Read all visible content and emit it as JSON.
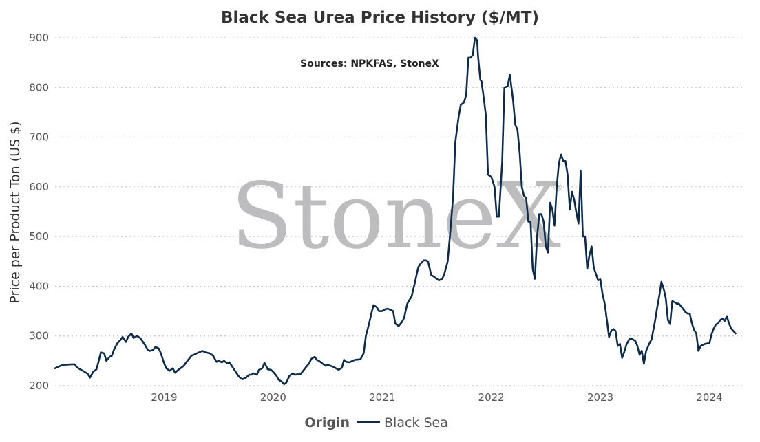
{
  "watermark": {
    "text": "StoneX",
    "mark": "®"
  },
  "legend": {
    "title": "Origin",
    "label": "Black Sea"
  },
  "chart_data": {
    "type": "line",
    "title": "Black Sea Urea Price History ($/MT)",
    "subtitle": "Sources: NPKFAS, StoneX",
    "xlabel": "",
    "ylabel": "Price per Product Ton (US $)",
    "ylim": [
      200,
      900
    ],
    "yticks": [
      200,
      300,
      400,
      500,
      600,
      700,
      800,
      900
    ],
    "xlim": [
      2018.0,
      2024.3
    ],
    "xticks": [
      {
        "value": 2019.0,
        "label": "2019"
      },
      {
        "value": 2020.0,
        "label": "2020"
      },
      {
        "value": 2021.0,
        "label": "2021"
      },
      {
        "value": 2022.0,
        "label": "2022"
      },
      {
        "value": 2023.0,
        "label": "2023"
      },
      {
        "value": 2024.0,
        "label": "2024"
      }
    ],
    "grid": true,
    "legend_position": "bottom",
    "series": [
      {
        "name": "Black Sea",
        "color": "#0d2c4b",
        "x": [
          2018.0,
          2018.05,
          2018.08,
          2018.1,
          2018.15,
          2018.18,
          2018.2,
          2018.23,
          2018.27,
          2018.3,
          2018.32,
          2018.35,
          2018.38,
          2018.4,
          2018.42,
          2018.45,
          2018.47,
          2018.5,
          2018.52,
          2018.54,
          2018.57,
          2018.6,
          2018.62,
          2018.65,
          2018.67,
          2018.7,
          2018.72,
          2018.75,
          2018.78,
          2018.8,
          2018.83,
          2018.85,
          2018.87,
          2018.9,
          2018.92,
          2018.95,
          2018.97,
          2019.0,
          2019.02,
          2019.05,
          2019.08,
          2019.1,
          2019.13,
          2019.15,
          2019.18,
          2019.2,
          2019.25,
          2019.3,
          2019.35,
          2019.38,
          2019.42,
          2019.45,
          2019.48,
          2019.5,
          2019.53,
          2019.55,
          2019.58,
          2019.6,
          2019.62,
          2019.65,
          2019.68,
          2019.7,
          2019.72,
          2019.75,
          2019.78,
          2019.8,
          2019.82,
          2019.85,
          2019.87,
          2019.9,
          2019.92,
          2019.95,
          2019.98,
          2020.0,
          2020.03,
          2020.05,
          2020.08,
          2020.1,
          2020.12,
          2020.15,
          2020.18,
          2020.2,
          2020.22,
          2020.25,
          2020.3,
          2020.33,
          2020.35,
          2020.38,
          2020.4,
          2020.42,
          2020.45,
          2020.48,
          2020.5,
          2020.55,
          2020.6,
          2020.63,
          2020.65,
          2020.67,
          2020.7,
          2020.75,
          2020.8,
          2020.83,
          2020.85,
          2020.88,
          2020.9,
          2020.92,
          2020.95,
          2020.97,
          2021.0,
          2021.03,
          2021.05,
          2021.08,
          2021.1,
          2021.12,
          2021.15,
          2021.18,
          2021.2,
          2021.23,
          2021.27,
          2021.3,
          2021.33,
          2021.35,
          2021.38,
          2021.4,
          2021.42,
          2021.45,
          2021.47,
          2021.5,
          2021.52,
          2021.55,
          2021.57,
          2021.6,
          2021.62,
          2021.65,
          2021.67,
          2021.7,
          2021.72,
          2021.75,
          2021.77,
          2021.79,
          2021.81,
          2021.83,
          2021.85,
          2021.87,
          2021.88,
          2021.9,
          2021.91,
          2021.93,
          2021.95,
          2021.97,
          2022.0,
          2022.03,
          2022.05,
          2022.07,
          2022.1,
          2022.12,
          2022.15,
          2022.17,
          2022.2,
          2022.22,
          2022.24,
          2022.26,
          2022.28,
          2022.3,
          2022.32,
          2022.34,
          2022.36,
          2022.38,
          2022.4,
          2022.42,
          2022.44,
          2022.46,
          2022.48,
          2022.5,
          2022.52,
          2022.54,
          2022.56,
          2022.58,
          2022.6,
          2022.62,
          2022.64,
          2022.66,
          2022.68,
          2022.7,
          2022.72,
          2022.74,
          2022.76,
          2022.78,
          2022.8,
          2022.82,
          2022.84,
          2022.86,
          2022.88,
          2022.9,
          2022.92,
          2022.94,
          2022.96,
          2022.98,
          2023.0,
          2023.02,
          2023.04,
          2023.06,
          2023.08,
          2023.1,
          2023.12,
          2023.14,
          2023.16,
          2023.18,
          2023.2,
          2023.22,
          2023.24,
          2023.27,
          2023.3,
          2023.32,
          2023.34,
          2023.36,
          2023.38,
          2023.4,
          2023.42,
          2023.45,
          2023.47,
          2023.5,
          2023.52,
          2023.54,
          2023.56,
          2023.58,
          2023.6,
          2023.62,
          2023.64,
          2023.66,
          2023.68,
          2023.7,
          2023.72,
          2023.75,
          2023.78,
          2023.8,
          2023.82,
          2023.84,
          2023.86,
          2023.88,
          2023.9,
          2023.92,
          2023.94,
          2023.96,
          2023.98,
          2024.0,
          2024.02,
          2024.04,
          2024.06,
          2024.08,
          2024.1,
          2024.12,
          2024.14,
          2024.16,
          2024.18,
          2024.2,
          2024.22,
          2024.24
        ],
        "y": [
          235,
          240,
          242,
          242,
          243,
          243,
          237,
          233,
          228,
          224,
          216,
          228,
          233,
          250,
          267,
          265,
          250,
          258,
          260,
          272,
          285,
          292,
          298,
          288,
          298,
          305,
          296,
          300,
          296,
          290,
          280,
          272,
          270,
          272,
          278,
          275,
          265,
          245,
          235,
          230,
          235,
          226,
          232,
          235,
          240,
          246,
          260,
          265,
          270,
          267,
          265,
          260,
          248,
          250,
          247,
          250,
          245,
          247,
          240,
          230,
          220,
          215,
          213,
          216,
          222,
          222,
          225,
          222,
          232,
          235,
          246,
          233,
          232,
          228,
          220,
          212,
          208,
          203,
          206,
          220,
          225,
          222,
          223,
          223,
          237,
          245,
          254,
          258,
          252,
          250,
          245,
          240,
          242,
          238,
          232,
          236,
          252,
          248,
          247,
          252,
          253,
          265,
          300,
          325,
          345,
          362,
          358,
          350,
          350,
          354,
          355,
          352,
          350,
          325,
          320,
          328,
          336,
          365,
          380,
          408,
          438,
          445,
          452,
          452,
          450,
          422,
          420,
          415,
          412,
          415,
          425,
          450,
          500,
          580,
          690,
          740,
          765,
          770,
          785,
          860,
          860,
          865,
          900,
          895,
          860,
          815,
          813,
          780,
          745,
          625,
          620,
          600,
          540,
          540,
          650,
          800,
          802,
          826,
          775,
          725,
          715,
          670,
          600,
          582,
          578,
          530,
          530,
          435,
          415,
          500,
          545,
          545,
          530,
          480,
          468,
          568,
          555,
          522,
          600,
          648,
          665,
          652,
          652,
          625,
          555,
          590,
          575,
          548,
          526,
          632,
          500,
          500,
          435,
          462,
          480,
          437,
          425,
          412,
          414,
          385,
          365,
          332,
          298,
          310,
          314,
          310,
          280,
          284,
          256,
          268,
          283,
          295,
          293,
          290,
          280,
          262,
          270,
          244,
          270,
          285,
          293,
          328,
          355,
          380,
          409,
          396,
          376,
          332,
          324,
          370,
          368,
          365,
          365,
          357,
          348,
          345,
          345,
          325,
          312,
          305,
          270,
          280,
          282,
          284,
          285,
          285,
          303,
          315,
          323,
          325,
          332,
          335,
          330,
          340,
          325,
          315,
          310,
          305
        ]
      }
    ]
  }
}
